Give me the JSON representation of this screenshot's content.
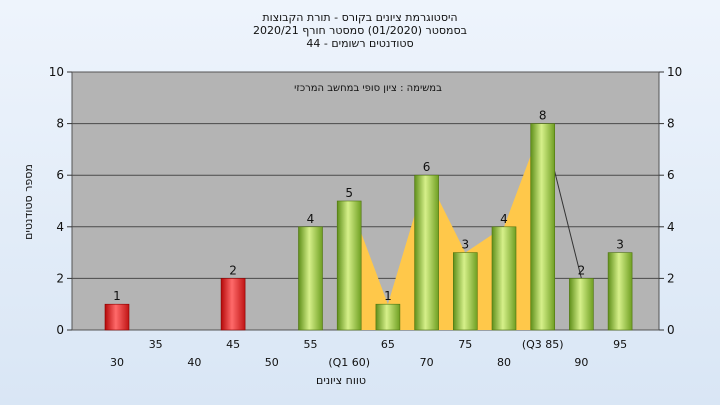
{
  "chart_data": {
    "type": "bar",
    "title_lines": [
      "היסטוגרמת ציונים בקורס - תורת הקבוצות",
      "בסמסטר  (01/2020)  סמסטר חורף  2020/21",
      "סטודנטים רשומים - 44"
    ],
    "subtitle": "במשימה : ציון סופי במחשב המרכזי",
    "xlabel": "טווח ציונים",
    "ylabel": "מספר סטודנטים",
    "ylim": [
      0,
      10
    ],
    "yticks": [
      0,
      2,
      4,
      6,
      8,
      10
    ],
    "grid": true,
    "categories": [
      "30",
      "35",
      "40",
      "45",
      "50",
      "55",
      "(Q1 60)",
      "65",
      "70",
      "75",
      "80",
      "(Q3 85)",
      "90",
      "95"
    ],
    "values": [
      1,
      0,
      0,
      2,
      0,
      4,
      5,
      1,
      6,
      3,
      4,
      8,
      2,
      3
    ],
    "bar_colors": {
      "fail": "#e02020",
      "pass": "#8cc040",
      "fail_categories": [
        "30",
        "35",
        "40",
        "45",
        "50"
      ]
    },
    "iqr_area": {
      "color": "#ffc84a",
      "from": "(Q1 60)",
      "to": "(Q3 85)"
    }
  }
}
